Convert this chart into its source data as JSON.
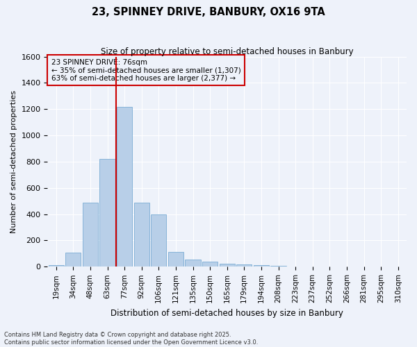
{
  "title_line1": "23, SPINNEY DRIVE, BANBURY, OX16 9TA",
  "title_line2": "Size of property relative to semi-detached houses in Banbury",
  "xlabel": "Distribution of semi-detached houses by size in Banbury",
  "ylabel": "Number of semi-detached properties",
  "categories": [
    "19sqm",
    "34sqm",
    "48sqm",
    "63sqm",
    "77sqm",
    "92sqm",
    "106sqm",
    "121sqm",
    "135sqm",
    "150sqm",
    "165sqm",
    "179sqm",
    "194sqm",
    "208sqm",
    "223sqm",
    "237sqm",
    "252sqm",
    "266sqm",
    "281sqm",
    "295sqm",
    "310sqm"
  ],
  "values": [
    10,
    110,
    490,
    820,
    1220,
    490,
    400,
    115,
    55,
    40,
    25,
    20,
    10,
    5,
    0,
    0,
    0,
    0,
    0,
    0,
    0
  ],
  "bar_color": "#b8cfe8",
  "bar_edge_color": "#7aacd4",
  "annotation_title": "23 SPINNEY DRIVE: 76sqm",
  "annotation_line1": "← 35% of semi-detached houses are smaller (1,307)",
  "annotation_line2": "63% of semi-detached houses are larger (2,377) →",
  "vline_color": "#cc0000",
  "box_edge_color": "#cc0000",
  "vline_x": 3.5,
  "ylim": [
    0,
    1600
  ],
  "yticks": [
    0,
    200,
    400,
    600,
    800,
    1000,
    1200,
    1400,
    1600
  ],
  "background_color": "#eef2fa",
  "grid_color": "#ffffff",
  "footer_line1": "Contains HM Land Registry data © Crown copyright and database right 2025.",
  "footer_line2": "Contains public sector information licensed under the Open Government Licence v3.0."
}
